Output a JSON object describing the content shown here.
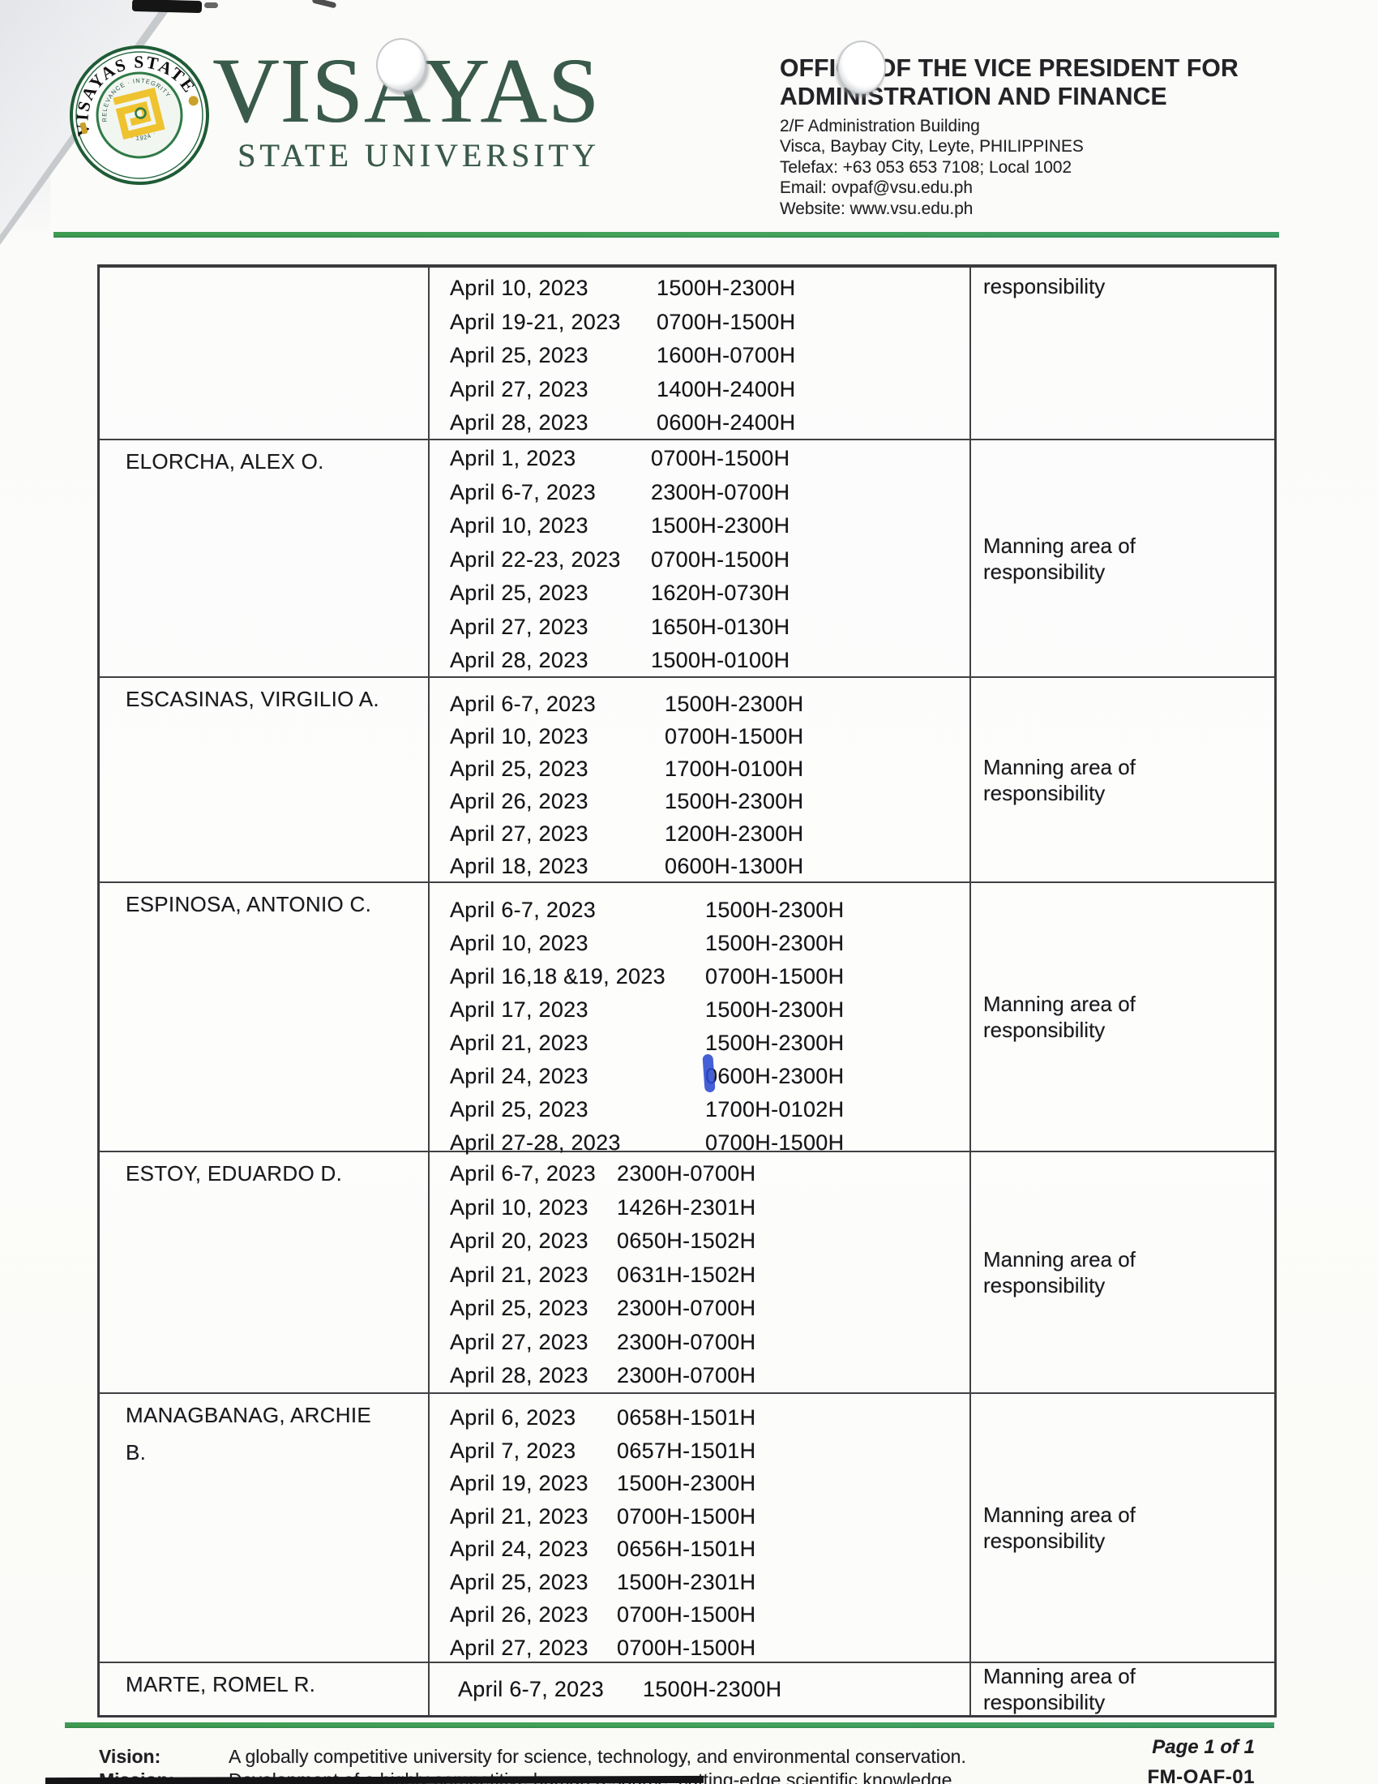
{
  "header": {
    "seal": {
      "ring_top": "VISAYAS STATE",
      "ring_bottom": "UNIVERSITY",
      "inner_top": "RELEVANCE · INTEGRITY",
      "inner_bottom": "· 1924 ·"
    },
    "wordmark": {
      "line1": "VISAYAS",
      "line2": "STATE UNIVERSITY"
    },
    "office": {
      "line1": "OFFICE OF THE VICE PRESIDENT FOR",
      "line2": "ADMINISTRATION AND FINANCE"
    },
    "address": {
      "building": "2/F Administration Building",
      "location": "Visca, Baybay City, Leyte, PHILIPPINES",
      "telefax": "Telefax: +63 053 653 7108; Local 1002",
      "email": "Email: ovpaf@vsu.edu.ph",
      "website": "Website: www.vsu.edu.ph"
    }
  },
  "table": {
    "rows": [
      {
        "name_lines": [],
        "schedule": [
          {
            "date": "April 10, 2023",
            "time": "1500H-2300H"
          },
          {
            "date": "April 19-21, 2023",
            "time": "0700H-1500H"
          },
          {
            "date": "April 25, 2023",
            "time": "1600H-0700H"
          },
          {
            "date": "April 27, 2023",
            "time": "1400H-2400H"
          },
          {
            "date": "April 28, 2023",
            "time": "0600H-2400H"
          }
        ],
        "remark_lines": [
          "responsibility"
        ]
      },
      {
        "name_lines": [
          "ELORCHA, ALEX O."
        ],
        "schedule": [
          {
            "date": "April 1, 2023",
            "time": "0700H-1500H"
          },
          {
            "date": "April 6-7, 2023",
            "time": "2300H-0700H"
          },
          {
            "date": "April 10, 2023",
            "time": "1500H-2300H"
          },
          {
            "date": "April 22-23, 2023",
            "time": "0700H-1500H"
          },
          {
            "date": "April 25, 2023",
            "time": "1620H-0730H"
          },
          {
            "date": "April 27, 2023",
            "time": "1650H-0130H"
          },
          {
            "date": "April 28, 2023",
            "time": "1500H-0100H"
          }
        ],
        "remark_lines": [
          "Manning area of",
          "responsibility"
        ]
      },
      {
        "name_lines": [
          "ESCASINAS, VIRGILIO A."
        ],
        "schedule": [
          {
            "date": "April 6-7, 2023",
            "time": "1500H-2300H"
          },
          {
            "date": "April 10, 2023",
            "time": "0700H-1500H"
          },
          {
            "date": "April 25, 2023",
            "time": "1700H-0100H"
          },
          {
            "date": "April 26, 2023",
            "time": "1500H-2300H"
          },
          {
            "date": "April 27, 2023",
            "time": "1200H-2300H"
          },
          {
            "date": "April 18, 2023",
            "time": "0600H-1300H"
          }
        ],
        "remark_lines": [
          "Manning area of",
          "responsibility"
        ]
      },
      {
        "name_lines": [
          "ESPINOSA, ANTONIO C."
        ],
        "schedule": [
          {
            "date": "April 6-7, 2023",
            "time": "1500H-2300H"
          },
          {
            "date": "April 10, 2023",
            "time": "1500H-2300H"
          },
          {
            "date": "April 16,18 &19, 2023",
            "time": "0700H-1500H"
          },
          {
            "date": "April 17, 2023",
            "time": "1500H-2300H"
          },
          {
            "date": "April 21, 2023",
            "time": "1500H-2300H"
          },
          {
            "date": "April 24, 2023",
            "time": "0600H-2300H"
          },
          {
            "date": "April 25, 2023",
            "time": "1700H-0102H"
          },
          {
            "date": "April 27-28, 2023",
            "time": "0700H-1500H"
          }
        ],
        "remark_lines": [
          "Manning area of",
          "responsibility"
        ]
      },
      {
        "name_lines": [
          "ESTOY, EDUARDO D."
        ],
        "schedule": [
          {
            "date": "April 6-7, 2023",
            "time": "2300H-0700H"
          },
          {
            "date": "April 10, 2023",
            "time": "1426H-2301H"
          },
          {
            "date": "April 20, 2023",
            "time": "0650H-1502H"
          },
          {
            "date": "April 21, 2023",
            "time": "0631H-1502H"
          },
          {
            "date": "April 25, 2023",
            "time": "2300H-0700H"
          },
          {
            "date": "April 27, 2023",
            "time": "2300H-0700H"
          },
          {
            "date": "April 28, 2023",
            "time": "2300H-0700H"
          }
        ],
        "remark_lines": [
          "Manning area of",
          "responsibility"
        ]
      },
      {
        "name_lines": [
          "MANAGBANAG, ARCHIE",
          "B."
        ],
        "schedule": [
          {
            "date": "April 6, 2023",
            "time": "0658H-1501H"
          },
          {
            "date": "April 7, 2023",
            "time": "0657H-1501H"
          },
          {
            "date": "April 19, 2023",
            "time": "1500H-2300H"
          },
          {
            "date": "April 21, 2023",
            "time": "0700H-1500H"
          },
          {
            "date": "April 24, 2023",
            "time": "0656H-1501H"
          },
          {
            "date": "April 25, 2023",
            "time": "1500H-2301H"
          },
          {
            "date": "April 26, 2023",
            "time": "0700H-1500H"
          },
          {
            "date": "April 27, 2023",
            "time": "0700H-1500H"
          }
        ],
        "remark_lines": [
          "Manning area of",
          "responsibility"
        ]
      },
      {
        "name_lines": [
          "MARTE, ROMEL R."
        ],
        "schedule": [
          {
            "date": "April 6-7, 2023",
            "time": "1500H-2300H"
          }
        ],
        "remark_lines": [
          "Manning area of",
          "responsibility"
        ]
      }
    ]
  },
  "footer": {
    "page_number": "Page 1 of 1",
    "form_code": "FM-OAF-01",
    "vision_label": "Vision:",
    "vision_text": "A globally competitive university for science, technology, and environmental conservation.",
    "mission_label": "Mission:",
    "mission_text": "Development of a highly competitive human resource, cutting-edge scientific knowledge"
  },
  "colors": {
    "brand_green": "#3a5a4b",
    "seal_ring_green": "#1f5c36",
    "seal_gold": "#eec32f",
    "rule_green": "#3f9b52",
    "pen_blue": "#2b4ad0"
  }
}
